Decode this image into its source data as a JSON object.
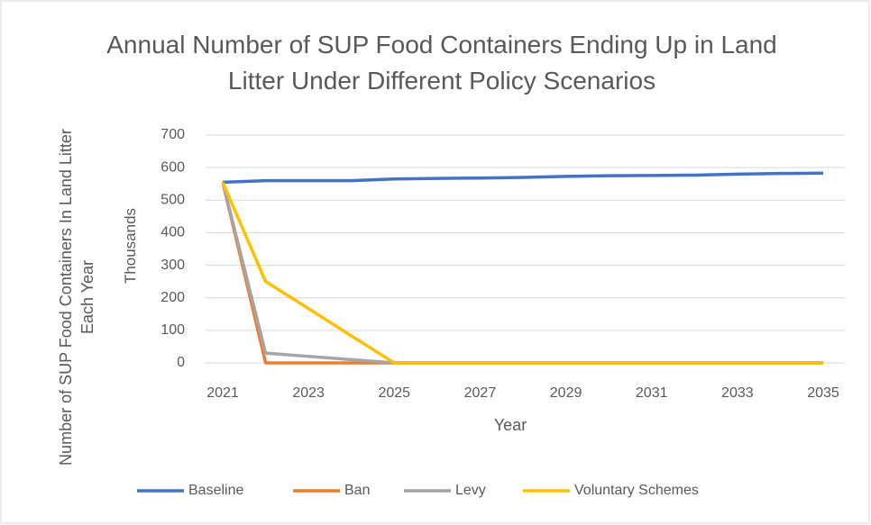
{
  "chart_data": {
    "type": "line",
    "title": "Annual Number of SUP Food Containers Ending Up in Land Litter Under Different Policy Scenarios",
    "x_label": "Year",
    "y_label": "Number of SUP Food Containers In Land Litter Each Year",
    "y_unit_label": "Thousands",
    "x": [
      2021,
      2022,
      2023,
      2024,
      2025,
      2026,
      2027,
      2028,
      2029,
      2030,
      2031,
      2032,
      2033,
      2034,
      2035
    ],
    "xlim": [
      2021,
      2035
    ],
    "xticks": [
      2021,
      2023,
      2025,
      2027,
      2029,
      2031,
      2033,
      2035
    ],
    "ylim": [
      0,
      700
    ],
    "yticks": [
      0,
      100,
      200,
      300,
      400,
      500,
      600,
      700
    ],
    "grid": true,
    "legend": "bottom",
    "series": [
      {
        "name": "Baseline",
        "color": "#4472c4",
        "values": [
          555,
          560,
          560,
          560,
          565,
          567,
          568,
          570,
          573,
          575,
          576,
          577,
          580,
          582,
          583
        ]
      },
      {
        "name": "Ban",
        "color": "#ed7d31",
        "values": [
          555,
          0,
          0,
          0,
          0,
          0,
          0,
          0,
          0,
          0,
          0,
          0,
          0,
          0,
          0
        ]
      },
      {
        "name": "Levy",
        "color": "#a5a5a5",
        "values": [
          555,
          30,
          20,
          10,
          0,
          0,
          0,
          0,
          0,
          0,
          0,
          0,
          0,
          0,
          0
        ]
      },
      {
        "name": "Voluntary Schemes",
        "color": "#ffc000",
        "values": [
          555,
          250,
          167,
          83,
          0,
          0,
          0,
          0,
          0,
          0,
          0,
          0,
          0,
          0,
          0
        ]
      }
    ]
  }
}
